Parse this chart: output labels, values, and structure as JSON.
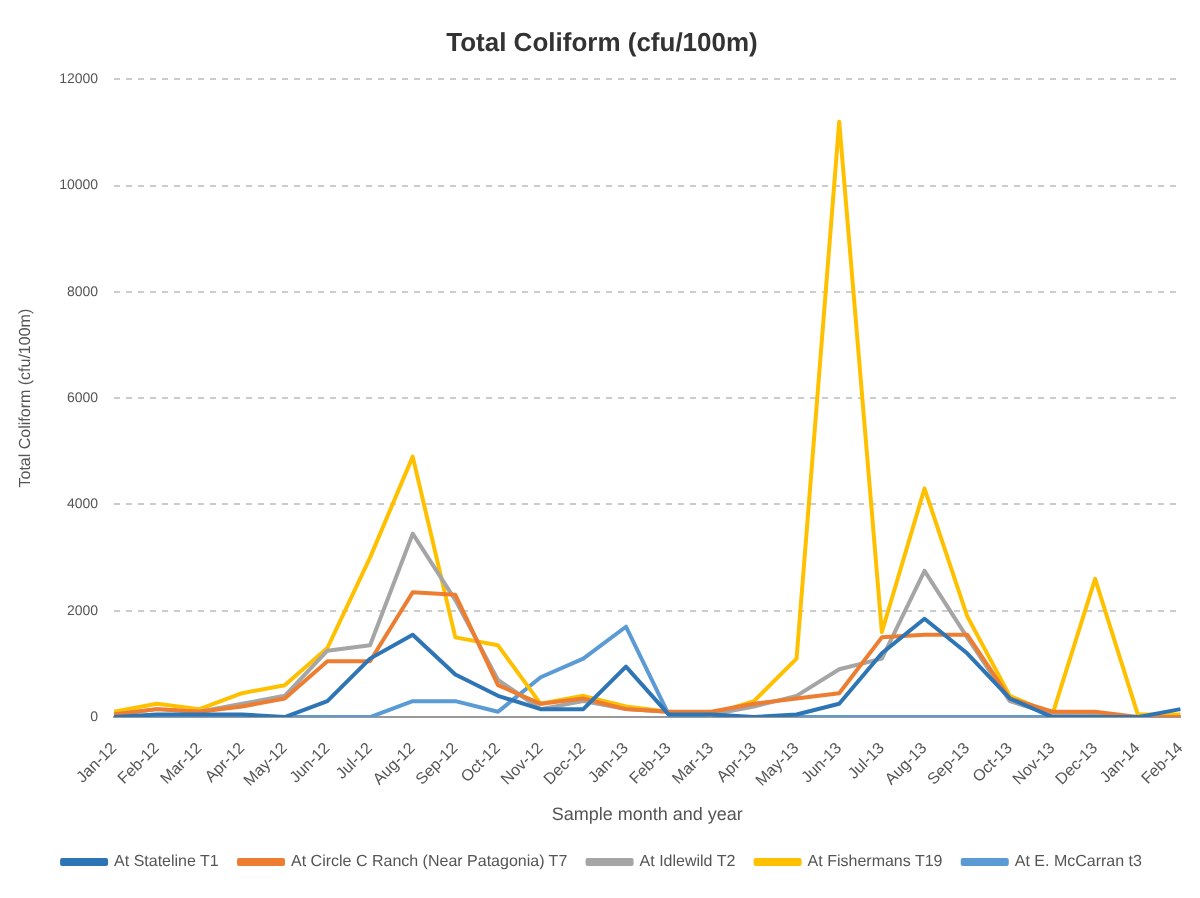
{
  "chart_data": {
    "type": "line",
    "title": "Total Coliform (cfu/100m)",
    "xlabel": "Sample month and year",
    "ylabel": "Total Coliform (cfu/100m)",
    "categories": [
      "Jan-12",
      "Feb-12",
      "Mar-12",
      "Apr-12",
      "May-12",
      "Jun-12",
      "Jul-12",
      "Aug-12",
      "Sep-12",
      "Oct-12",
      "Nov-12",
      "Dec-12",
      "Jan-13",
      "Feb-13",
      "Mar-13",
      "Apr-13",
      "May-13",
      "Jun-13",
      "Jul-13",
      "Aug-13",
      "Sep-13",
      "Oct-13",
      "Nov-13",
      "Dec-13",
      "Jan-14",
      "Feb-14"
    ],
    "series": [
      {
        "name": "At Stateline T1",
        "color": "#2e75b6",
        "values": [
          0,
          50,
          50,
          50,
          0,
          300,
          1100,
          1550,
          800,
          400,
          150,
          150,
          950,
          50,
          50,
          0,
          50,
          250,
          1200,
          1850,
          1200,
          350,
          0,
          0,
          0,
          150
        ]
      },
      {
        "name": "At Circle C Ranch (Near Patagonia) T7",
        "color": "#ed7d31",
        "values": [
          50,
          150,
          100,
          200,
          350,
          1050,
          1050,
          2350,
          2300,
          600,
          250,
          350,
          150,
          100,
          100,
          250,
          350,
          450,
          1500,
          1550,
          1550,
          350,
          100,
          100,
          0,
          0
        ]
      },
      {
        "name": "At Idlewild T2",
        "color": "#a5a5a5",
        "values": [
          50,
          150,
          100,
          250,
          400,
          1250,
          1350,
          3450,
          2200,
          700,
          150,
          300,
          150,
          100,
          50,
          200,
          400,
          900,
          1100,
          2750,
          1500,
          300,
          50,
          50,
          0,
          0
        ]
      },
      {
        "name": "At Fishermans T19",
        "color": "#ffc000",
        "values": [
          100,
          250,
          150,
          450,
          600,
          1300,
          3000,
          4900,
          1500,
          1350,
          250,
          400,
          200,
          100,
          50,
          300,
          1100,
          11200,
          1600,
          4300,
          1900,
          400,
          50,
          2600,
          50,
          50
        ]
      },
      {
        "name": "At E. McCarran t3",
        "color": "#5b9bd5",
        "values": [
          0,
          0,
          0,
          0,
          0,
          0,
          0,
          300,
          300,
          100,
          750,
          1100,
          1700,
          50,
          0,
          0,
          0,
          0,
          0,
          0,
          0,
          0,
          0,
          0,
          0,
          0
        ]
      }
    ],
    "ylim": [
      0,
      12000
    ],
    "yticks": [
      0,
      2000,
      4000,
      6000,
      8000,
      10000,
      12000
    ],
    "grid": "y",
    "legend": "bottom",
    "marker": "none",
    "line_style": "solid"
  }
}
